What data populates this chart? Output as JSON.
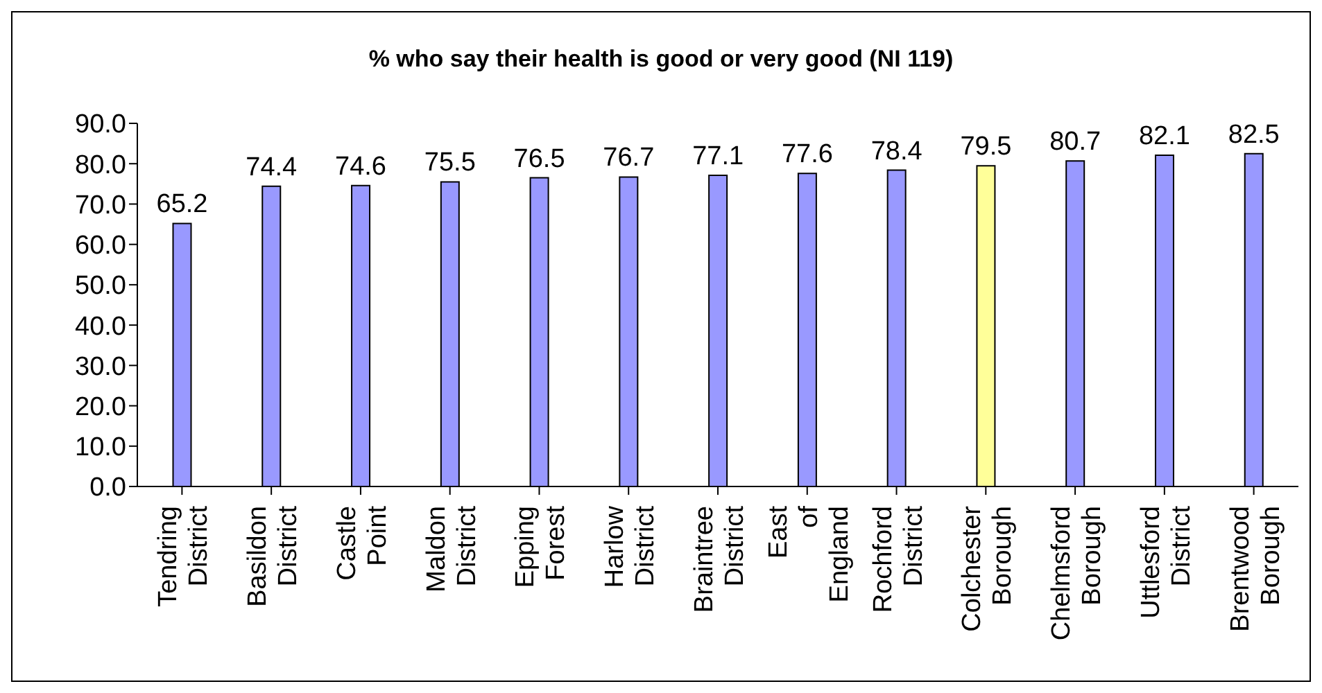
{
  "chart_data": {
    "type": "bar",
    "title": "%  who say their health is good or very good (NI 119)",
    "categories": [
      "Tendring District",
      "Basildon District",
      "Castle Point",
      "Maldon District",
      "Epping Forest",
      "Harlow District",
      "Braintree District",
      "East of England",
      "Rochford District",
      "Colchester Borough",
      "Chelmsford Borough",
      "Uttlesford District",
      "Brentwood Borough"
    ],
    "values": [
      65.2,
      74.4,
      74.6,
      75.5,
      76.5,
      76.7,
      77.1,
      77.6,
      78.4,
      79.5,
      80.7,
      82.1,
      82.5
    ],
    "colors": [
      "#9999ff",
      "#9999ff",
      "#9999ff",
      "#9999ff",
      "#9999ff",
      "#9999ff",
      "#9999ff",
      "#9999ff",
      "#9999ff",
      "#ffff99",
      "#9999ff",
      "#9999ff",
      "#9999ff"
    ],
    "ylim": [
      0,
      90
    ],
    "yticks": [
      {
        "value": 0,
        "label": "0.0"
      },
      {
        "value": 10,
        "label": "10.0"
      },
      {
        "value": 20,
        "label": "20.0"
      },
      {
        "value": 30,
        "label": "30.0"
      },
      {
        "value": 40,
        "label": "40.0"
      },
      {
        "value": 50,
        "label": "50.0"
      },
      {
        "value": 60,
        "label": "60.0"
      },
      {
        "value": 70,
        "label": "70.0"
      },
      {
        "value": 80,
        "label": "80.0"
      },
      {
        "value": 90,
        "label": "90.0"
      }
    ],
    "data_labels": true
  }
}
